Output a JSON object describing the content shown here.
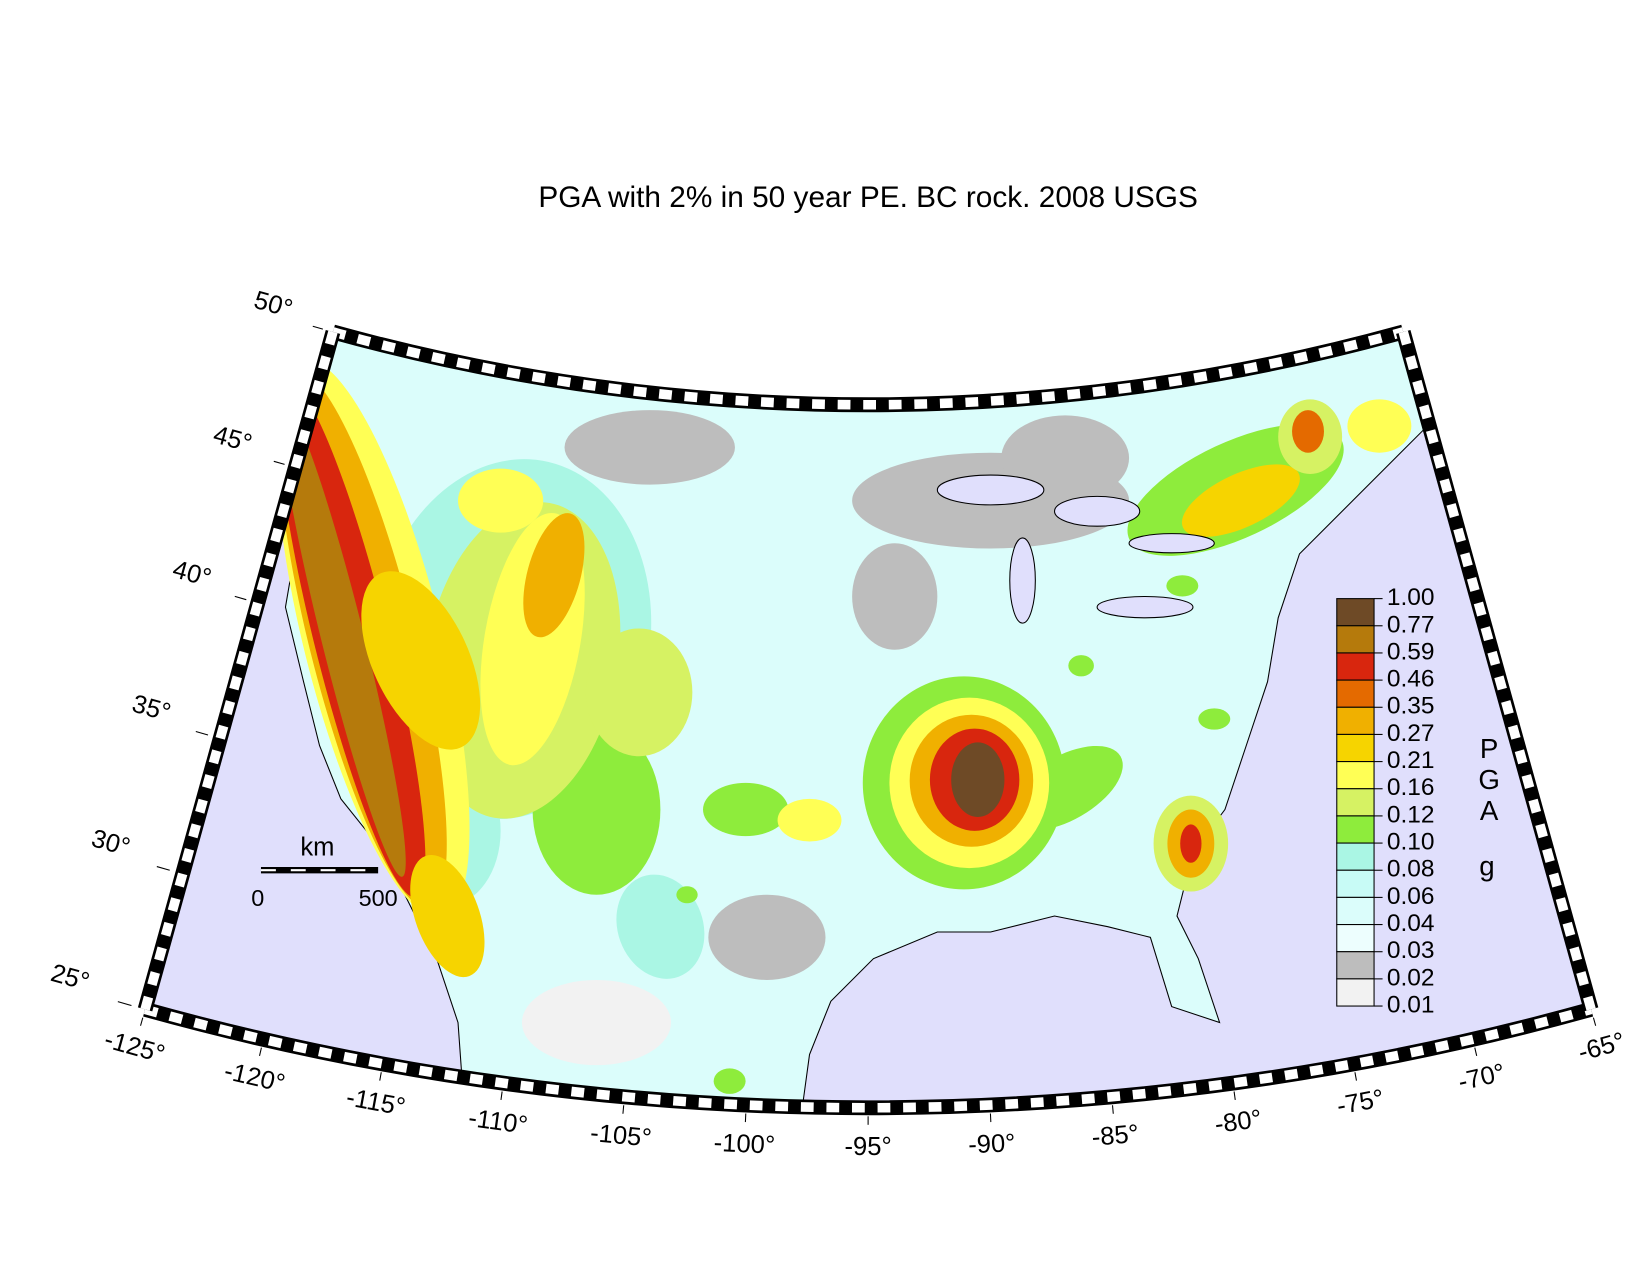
{
  "title": "PGA with 2% in 50 year PE. BC rock. 2008 USGS",
  "latitude_ticks": [
    {
      "value": 50,
      "label": "50°"
    },
    {
      "value": 45,
      "label": "45°"
    },
    {
      "value": 40,
      "label": "40°"
    },
    {
      "value": 35,
      "label": "35°"
    },
    {
      "value": 30,
      "label": "30°"
    },
    {
      "value": 25,
      "label": "25°"
    }
  ],
  "longitude_ticks": [
    {
      "value": -125,
      "label": "-125°"
    },
    {
      "value": -120,
      "label": "-120°"
    },
    {
      "value": -115,
      "label": "-115°"
    },
    {
      "value": -110,
      "label": "-110°"
    },
    {
      "value": -105,
      "label": "-105°"
    },
    {
      "value": -100,
      "label": "-100°"
    },
    {
      "value": -95,
      "label": "-95°"
    },
    {
      "value": -90,
      "label": "-90°"
    },
    {
      "value": -85,
      "label": "-85°"
    },
    {
      "value": -80,
      "label": "-80°"
    },
    {
      "value": -75,
      "label": "-75°"
    },
    {
      "value": -70,
      "label": "-70°"
    },
    {
      "value": -65,
      "label": "-65°"
    }
  ],
  "scale_bar": {
    "unit": "km",
    "labels": [
      "0",
      "500"
    ]
  },
  "colorbar": {
    "title": "PGA",
    "unit": "g",
    "labels": [
      "1.00",
      "0.77",
      "0.59",
      "0.46",
      "0.35",
      "0.27",
      "0.21",
      "0.16",
      "0.12",
      "0.10",
      "0.08",
      "0.06",
      "0.04",
      "0.03",
      "0.02",
      "0.01"
    ],
    "colors": [
      "#6e4a26",
      "#b57a0c",
      "#d8260e",
      "#e46a00",
      "#f0b000",
      "#f6d400",
      "#ffff55",
      "#d6f263",
      "#8eec3c",
      "#aaf6e4",
      "#c8fbf6",
      "#dbfdfb",
      "#edfefe",
      "#bdbdbd",
      "#f2f2f2"
    ]
  }
}
